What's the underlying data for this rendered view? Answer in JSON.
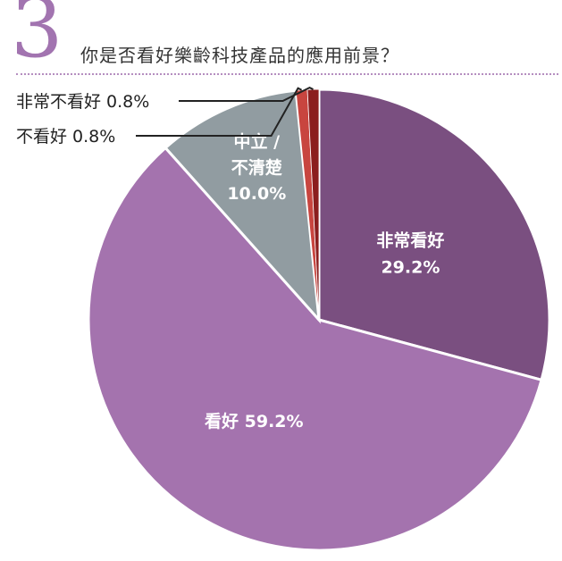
{
  "question": {
    "number": "3",
    "title": "你是否看好樂齡科技產品的應用前景？"
  },
  "colors": {
    "accent": "#a274b0",
    "text": "#333333"
  },
  "chart_data": {
    "type": "pie",
    "title": "你是否看好樂齡科技產品的應用前景？",
    "start_angle_deg": 0,
    "direction": "clockwise",
    "slices": [
      {
        "name": "非常看好",
        "value": 29.2,
        "label": "29.2%",
        "color": "#7a4f80",
        "label_style": "inside-two-line"
      },
      {
        "name": "看好",
        "value": 59.2,
        "label": "59.2%",
        "color": "#a473ae",
        "label_style": "inside-one-line"
      },
      {
        "name": "中立 / 不清楚",
        "value": 10.0,
        "label": "10.0%",
        "color": "#919ca1",
        "label_style": "inside-three-line",
        "name_lines": [
          "中立 /",
          "不清楚"
        ]
      },
      {
        "name": "不看好",
        "value": 0.8,
        "label": "0.8%",
        "color": "#c8453f",
        "label_style": "callout",
        "callout_text": "不看好 0.8%"
      },
      {
        "name": "非常不看好",
        "value": 0.8,
        "label": "0.8%",
        "color": "#8b1e1e",
        "label_style": "callout",
        "callout_text": "非常不看好 0.8%"
      }
    ]
  }
}
